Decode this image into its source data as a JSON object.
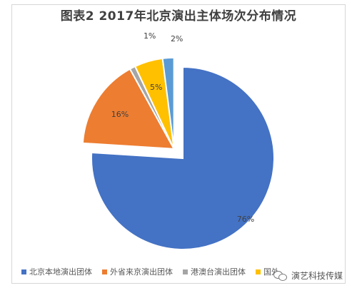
{
  "chart_data": {
    "type": "pie",
    "title": "图表2   2017年北京演出主体场次分布情况",
    "slices": [
      {
        "name": "北京本地演出团体",
        "value": 76,
        "label": "76%",
        "color": "#4472c4",
        "exploded": false
      },
      {
        "name": "外省来京演出团体",
        "value": 16,
        "label": "16%",
        "color": "#ed7d31",
        "exploded": true
      },
      {
        "name": "港澳台演出团体",
        "value": 1,
        "label": "1%",
        "color": "#a5a5a5",
        "exploded": true
      },
      {
        "name": "国外",
        "value": 5,
        "label": "5%",
        "color": "#ffc000",
        "exploded": true
      },
      {
        "name": "",
        "value": 2,
        "label": "2%",
        "color": "#5b9bd5",
        "exploded": true
      }
    ],
    "legend_position": "bottom-left"
  },
  "watermark": {
    "text": "演艺科技传媒",
    "icon": "wechat-icon"
  }
}
